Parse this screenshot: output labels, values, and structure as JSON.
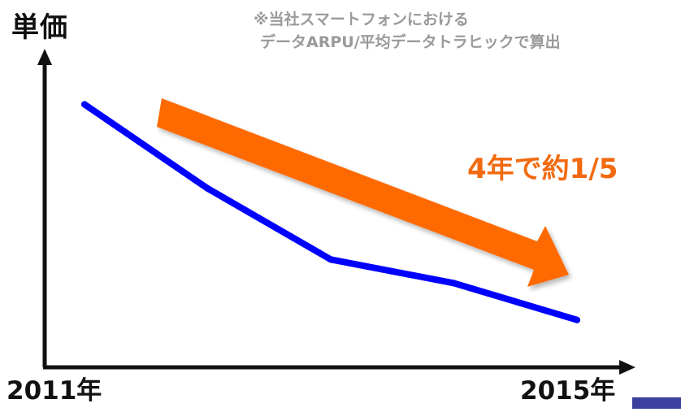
{
  "chart_data": {
    "type": "line",
    "ylabel": "単価",
    "note_lines": [
      "※当社スマートフォンにおける",
      "データARPU/平均データトラヒックで算出"
    ],
    "x_tick_labels": [
      "2011年",
      "2015年"
    ],
    "x": [
      0,
      1,
      2,
      3,
      4
    ],
    "x_range": [
      0,
      4
    ],
    "series": [
      {
        "values": [
          100,
          68,
          41,
          32,
          18
        ]
      }
    ],
    "y_range": [
      0,
      110
    ],
    "y_ticks_shown": false,
    "grid": false,
    "legend": "none",
    "annotation": {
      "text": "4年で約1/5",
      "arrow": "down-right"
    }
  },
  "colors": {
    "series_line": "#0000ff",
    "annotation": "#f26a10",
    "arrow_fill": "#ff6a00",
    "note_text": "#9a9a9a",
    "axis": "#111111",
    "corner_bar": "#3b3f9e"
  }
}
